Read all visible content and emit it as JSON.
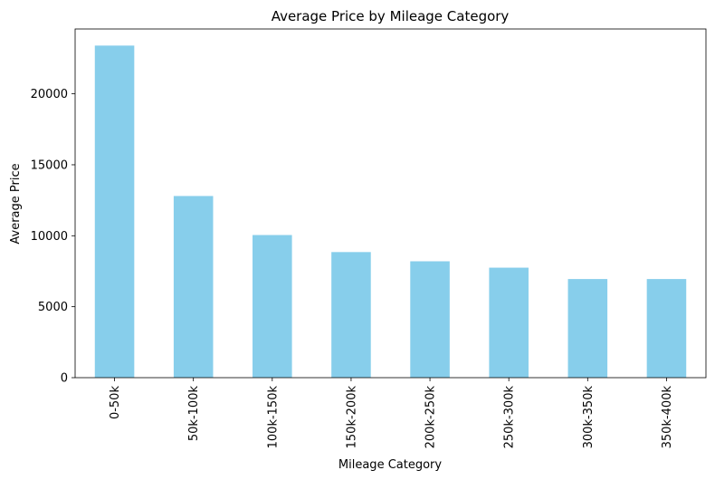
{
  "chart_data": {
    "type": "bar",
    "title": "Average Price by Mileage Category",
    "xlabel": "Mileage Category",
    "ylabel": "Average Price",
    "categories": [
      "0-50k",
      "50k-100k",
      "100k-150k",
      "150k-200k",
      "200k-250k",
      "250k-300k",
      "300k-350k",
      "350k-400k"
    ],
    "values": [
      23400,
      12800,
      10050,
      8850,
      8200,
      7750,
      6950,
      6950
    ],
    "ylim": [
      0,
      24570
    ],
    "yticks": [
      0,
      5000,
      10000,
      15000,
      20000
    ],
    "bar_color": "#87CEEB",
    "grid": false,
    "legend": "none"
  }
}
